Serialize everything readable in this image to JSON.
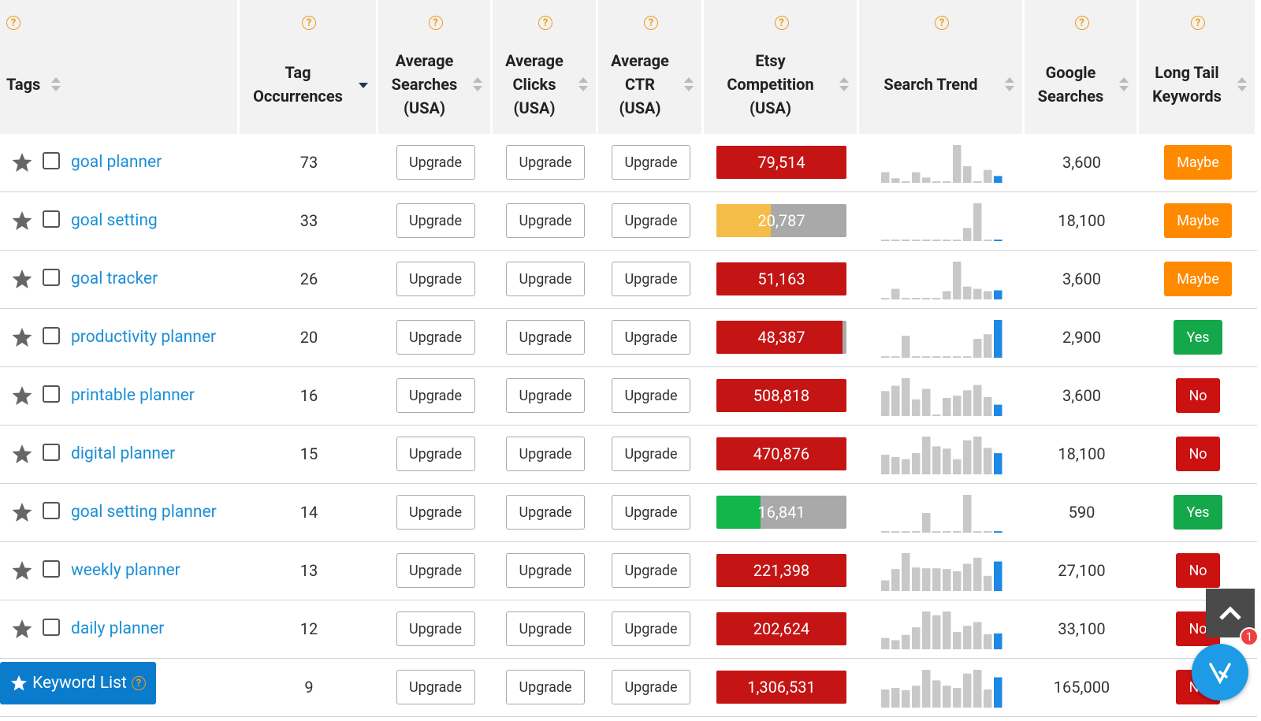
{
  "help_icon": "?",
  "columns": [
    {
      "lines": [
        "Tags"
      ]
    },
    {
      "lines": [
        "Tag",
        "Occurrences"
      ],
      "sort": "desc"
    },
    {
      "lines": [
        "Average",
        "Searches",
        "(USA)"
      ]
    },
    {
      "lines": [
        "Average",
        "Clicks",
        "(USA)"
      ]
    },
    {
      "lines": [
        "Average",
        "CTR",
        "(USA)"
      ]
    },
    {
      "lines": [
        "Etsy",
        "Competition",
        "(USA)"
      ]
    },
    {
      "lines": [
        "Search Trend"
      ]
    },
    {
      "lines": [
        "Google",
        "Searches"
      ]
    },
    {
      "lines": [
        "Long Tail",
        "Keywords"
      ]
    }
  ],
  "rows": [
    {
      "tag": "goal planner",
      "occurrences": 73,
      "avg_searches": "Upgrade",
      "avg_clicks": "Upgrade",
      "avg_ctr": "Upgrade",
      "competition": "79,514",
      "competition_fill": 100,
      "competition_color": "#c41414",
      "trend": [
        28,
        12,
        4,
        28,
        14,
        4,
        4,
        100,
        44,
        4,
        34,
        18
      ],
      "google_searches": "3,600",
      "long_tail": "Maybe",
      "long_tail_color": "#ff8a00"
    },
    {
      "tag": "goal setting",
      "occurrences": 33,
      "avg_searches": "Upgrade",
      "avg_clicks": "Upgrade",
      "avg_ctr": "Upgrade",
      "competition": "20,787",
      "competition_fill": 42,
      "competition_color": "#f4bd48",
      "trend": [
        4,
        4,
        4,
        4,
        4,
        4,
        4,
        4,
        35,
        100,
        4,
        4
      ],
      "google_searches": "18,100",
      "long_tail": "Maybe",
      "long_tail_color": "#ff8a00"
    },
    {
      "tag": "goal tracker",
      "occurrences": 26,
      "avg_searches": "Upgrade",
      "avg_clicks": "Upgrade",
      "avg_ctr": "Upgrade",
      "competition": "51,163",
      "competition_fill": 100,
      "competition_color": "#c41414",
      "trend": [
        4,
        28,
        4,
        4,
        4,
        4,
        22,
        100,
        34,
        28,
        22,
        24
      ],
      "google_searches": "3,600",
      "long_tail": "Maybe",
      "long_tail_color": "#ff8a00"
    },
    {
      "tag": "productivity planner",
      "occurrences": 20,
      "avg_searches": "Upgrade",
      "avg_clicks": "Upgrade",
      "avg_ctr": "Upgrade",
      "competition": "48,387",
      "competition_fill": 97,
      "competition_color": "#c41414",
      "trend": [
        4,
        4,
        58,
        4,
        4,
        4,
        4,
        4,
        4,
        50,
        62,
        100
      ],
      "google_searches": "2,900",
      "long_tail": "Yes",
      "long_tail_color": "#14a84a"
    },
    {
      "tag": "printable planner",
      "occurrences": 16,
      "avg_searches": "Upgrade",
      "avg_clicks": "Upgrade",
      "avg_ctr": "Upgrade",
      "competition": "508,818",
      "competition_fill": 100,
      "competition_color": "#c41414",
      "trend": [
        66,
        80,
        100,
        44,
        72,
        4,
        48,
        54,
        68,
        82,
        50,
        30
      ],
      "google_searches": "3,600",
      "long_tail": "No",
      "long_tail_color": "#cc1111"
    },
    {
      "tag": "digital planner",
      "occurrences": 15,
      "avg_searches": "Upgrade",
      "avg_clicks": "Upgrade",
      "avg_ctr": "Upgrade",
      "competition": "470,876",
      "competition_fill": 100,
      "competition_color": "#c41414",
      "trend": [
        52,
        46,
        40,
        56,
        100,
        74,
        68,
        40,
        90,
        100,
        70,
        56
      ],
      "google_searches": "18,100",
      "long_tail": "No",
      "long_tail_color": "#cc1111"
    },
    {
      "tag": "goal setting planner",
      "occurrences": 14,
      "avg_searches": "Upgrade",
      "avg_clicks": "Upgrade",
      "avg_ctr": "Upgrade",
      "competition": "16,841",
      "competition_fill": 34,
      "competition_color": "#12b64b",
      "trend": [
        4,
        4,
        4,
        4,
        52,
        4,
        4,
        4,
        100,
        4,
        4,
        4
      ],
      "google_searches": "590",
      "long_tail": "Yes",
      "long_tail_color": "#14a84a"
    },
    {
      "tag": "weekly planner",
      "occurrences": 13,
      "avg_searches": "Upgrade",
      "avg_clicks": "Upgrade",
      "avg_ctr": "Upgrade",
      "competition": "221,398",
      "competition_fill": 100,
      "competition_color": "#c41414",
      "trend": [
        28,
        58,
        100,
        62,
        60,
        60,
        58,
        52,
        72,
        88,
        40,
        78
      ],
      "google_searches": "27,100",
      "long_tail": "No",
      "long_tail_color": "#cc1111"
    },
    {
      "tag": "daily planner",
      "occurrences": 12,
      "avg_searches": "Upgrade",
      "avg_clicks": "Upgrade",
      "avg_ctr": "Upgrade",
      "competition": "202,624",
      "competition_fill": 100,
      "competition_color": "#c41414",
      "trend": [
        30,
        24,
        38,
        58,
        100,
        90,
        100,
        46,
        62,
        72,
        40,
        42
      ],
      "google_searches": "33,100",
      "long_tail": "No",
      "long_tail_color": "#cc1111"
    },
    {
      "tag": null,
      "occurrences": 9,
      "avg_searches": "Upgrade",
      "avg_clicks": "Upgrade",
      "avg_ctr": "Upgrade",
      "competition": "1,306,531",
      "competition_fill": 100,
      "competition_color": "#c41414",
      "trend": [
        48,
        52,
        46,
        58,
        100,
        72,
        58,
        52,
        90,
        100,
        48,
        80
      ],
      "google_searches": "165,000",
      "long_tail": "No",
      "long_tail_color": "#cc1111"
    }
  ],
  "keyword_list_button": "Keyword List",
  "chat_badge": "1"
}
